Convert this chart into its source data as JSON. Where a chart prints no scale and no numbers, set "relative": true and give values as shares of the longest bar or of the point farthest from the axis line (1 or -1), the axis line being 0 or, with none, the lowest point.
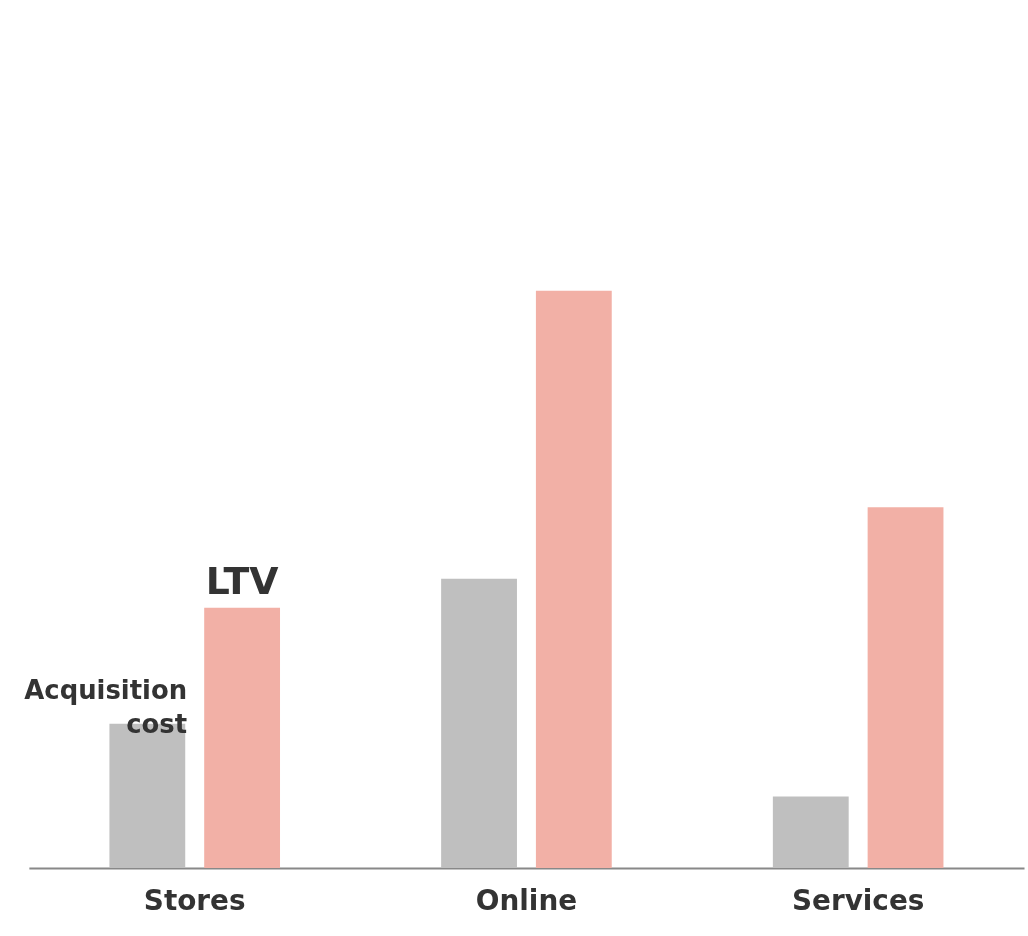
{
  "chart_data": {
    "type": "bar",
    "relative": true,
    "categories": [
      "Stores",
      "Online",
      "Services"
    ],
    "series": [
      {
        "name": "Acquisition cost",
        "color": "#bfbfbf",
        "values": [
          0.25,
          0.501,
          0.124
        ]
      },
      {
        "name": "LTV",
        "color": "#f2b0a6",
        "values": [
          0.451,
          1,
          0.625
        ]
      }
    ],
    "grid": false,
    "legend": false
  }
}
